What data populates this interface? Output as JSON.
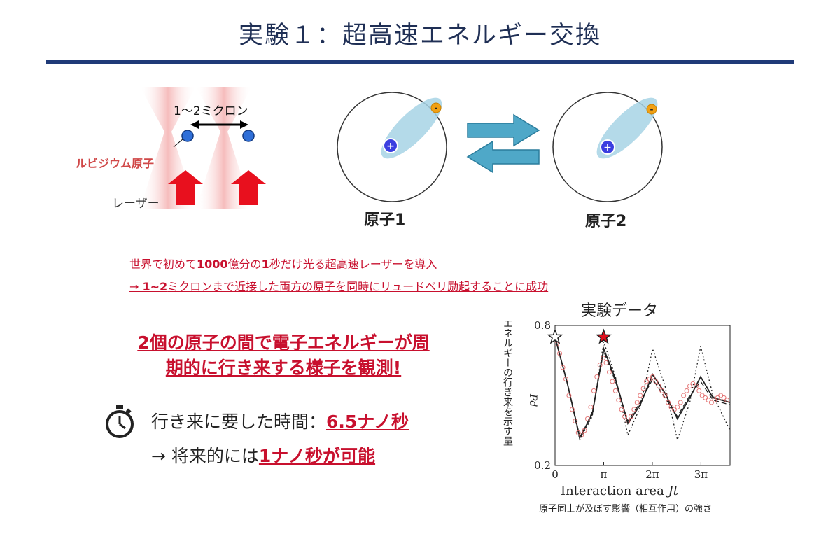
{
  "slide": {
    "title": "実験１：超高速エネルギー交換",
    "distance_label": "1〜2ミクロン",
    "rubidium_label": "ルビジウム原子",
    "laser_label": "レーザー",
    "atom1_label": "原子1",
    "atom2_label": "原子2",
    "plus_sign": "+",
    "minus_sign": "-",
    "line1": {
      "p1": "世界で初めて",
      "b1": "1000",
      "p2": "億分の",
      "b2": "1",
      "p3": "秒だけ光る超高速レーザーを導入"
    },
    "line2": {
      "p1": "→ ",
      "b1": "1~2",
      "p2": "ミクロンまで近接した両方の原子を同時にリュードベリ励起することに成功"
    },
    "headline_line1": "2個の原子の間で電子エネルギーが周",
    "headline_line2": "期的に行き来する様子を観測!",
    "time_line1_prefix": "行き来に要した時間：",
    "time_line1_value": "6.5ナノ秒",
    "time_line2_prefix": "→ 将来的には",
    "time_line2_value": "1ナノ秒が可能",
    "caption": "原子同士が及ぼす影響（相互作用）の強さ"
  },
  "chart_data": {
    "type": "scatter",
    "title": "実験データ",
    "xlabel": "Interaction area",
    "xlabel_var": "Jt",
    "ylabel": "エネルギーの行き来を示す量",
    "ylabel_var": "Pd",
    "xlim": [
      0,
      11.3
    ],
    "ylim": [
      0.2,
      0.8
    ],
    "xticks": [
      {
        "value": 0,
        "label": "0"
      },
      {
        "value": 3.14,
        "label": "π"
      },
      {
        "value": 6.28,
        "label": "2π"
      },
      {
        "value": 9.42,
        "label": "3π"
      }
    ],
    "yticks": [
      {
        "value": 0.8,
        "label": "0.8"
      },
      {
        "value": 0.2,
        "label": "0.2"
      }
    ],
    "series": [
      {
        "name": "",
        "kind": "solid-line",
        "color": "#222222",
        "points": [
          [
            0,
            0.75
          ],
          [
            0.8,
            0.55
          ],
          [
            1.6,
            0.32
          ],
          [
            2.4,
            0.42
          ],
          [
            3.14,
            0.7
          ],
          [
            3.9,
            0.57
          ],
          [
            4.7,
            0.38
          ],
          [
            5.5,
            0.46
          ],
          [
            6.3,
            0.59
          ],
          [
            7.1,
            0.51
          ],
          [
            7.9,
            0.4
          ],
          [
            8.7,
            0.49
          ],
          [
            9.4,
            0.58
          ],
          [
            10.2,
            0.49
          ],
          [
            11.3,
            0.47
          ]
        ]
      },
      {
        "name": "",
        "kind": "dashed-line",
        "color": "#222222",
        "points": [
          [
            0,
            0.75
          ],
          [
            0.8,
            0.55
          ],
          [
            1.6,
            0.31
          ],
          [
            2.4,
            0.43
          ],
          [
            3.14,
            0.69
          ],
          [
            3.9,
            0.56
          ],
          [
            4.7,
            0.39
          ],
          [
            5.5,
            0.47
          ],
          [
            6.3,
            0.57
          ],
          [
            7.1,
            0.49
          ],
          [
            7.9,
            0.41
          ],
          [
            8.7,
            0.5
          ],
          [
            9.4,
            0.56
          ],
          [
            10.2,
            0.48
          ],
          [
            11.3,
            0.46
          ]
        ]
      },
      {
        "name": "",
        "kind": "dotted-line",
        "color": "#222222",
        "points": [
          [
            0,
            0.75
          ],
          [
            0.8,
            0.55
          ],
          [
            1.6,
            0.31
          ],
          [
            2.4,
            0.41
          ],
          [
            3.14,
            0.73
          ],
          [
            3.9,
            0.58
          ],
          [
            4.7,
            0.33
          ],
          [
            5.5,
            0.45
          ],
          [
            6.3,
            0.7
          ],
          [
            7.1,
            0.54
          ],
          [
            7.9,
            0.31
          ],
          [
            8.7,
            0.47
          ],
          [
            9.4,
            0.71
          ],
          [
            10.2,
            0.5
          ],
          [
            11.3,
            0.35
          ]
        ]
      },
      {
        "name": "",
        "kind": "scatter",
        "color": "#e06060",
        "points": [
          [
            0.1,
            0.72
          ],
          [
            0.3,
            0.68
          ],
          [
            0.5,
            0.62
          ],
          [
            0.7,
            0.57
          ],
          [
            0.9,
            0.5
          ],
          [
            1.1,
            0.44
          ],
          [
            1.3,
            0.39
          ],
          [
            1.5,
            0.34
          ],
          [
            1.7,
            0.33
          ],
          [
            1.9,
            0.35
          ],
          [
            2.1,
            0.4
          ],
          [
            2.3,
            0.45
          ],
          [
            2.5,
            0.52
          ],
          [
            2.7,
            0.58
          ],
          [
            2.9,
            0.63
          ],
          [
            3.1,
            0.66
          ],
          [
            3.3,
            0.64
          ],
          [
            3.5,
            0.6
          ],
          [
            3.7,
            0.56
          ],
          [
            3.9,
            0.52
          ],
          [
            4.1,
            0.48
          ],
          [
            4.3,
            0.44
          ],
          [
            4.5,
            0.41
          ],
          [
            4.7,
            0.39
          ],
          [
            4.9,
            0.41
          ],
          [
            5.1,
            0.44
          ],
          [
            5.3,
            0.47
          ],
          [
            5.5,
            0.5
          ],
          [
            5.7,
            0.53
          ],
          [
            5.9,
            0.56
          ],
          [
            6.1,
            0.57
          ],
          [
            6.3,
            0.58
          ],
          [
            6.5,
            0.56
          ],
          [
            6.7,
            0.54
          ],
          [
            6.9,
            0.52
          ],
          [
            7.1,
            0.5
          ],
          [
            7.3,
            0.47
          ],
          [
            7.5,
            0.45
          ],
          [
            7.7,
            0.44
          ],
          [
            7.9,
            0.45
          ],
          [
            8.1,
            0.47
          ],
          [
            8.3,
            0.5
          ],
          [
            8.5,
            0.52
          ],
          [
            8.7,
            0.54
          ],
          [
            8.9,
            0.55
          ],
          [
            9.1,
            0.54
          ],
          [
            9.3,
            0.52
          ],
          [
            9.5,
            0.5
          ],
          [
            9.7,
            0.49
          ],
          [
            9.9,
            0.48
          ],
          [
            10.1,
            0.47
          ],
          [
            10.3,
            0.48
          ],
          [
            10.5,
            0.49
          ],
          [
            10.7,
            0.5
          ],
          [
            10.9,
            0.49
          ],
          [
            11.1,
            0.48
          ]
        ]
      }
    ],
    "markers": [
      {
        "x": 0,
        "y": 0.75,
        "fill": "#ffffff"
      },
      {
        "x": 3.14,
        "y": 0.75,
        "fill": "#e0101e"
      }
    ]
  }
}
